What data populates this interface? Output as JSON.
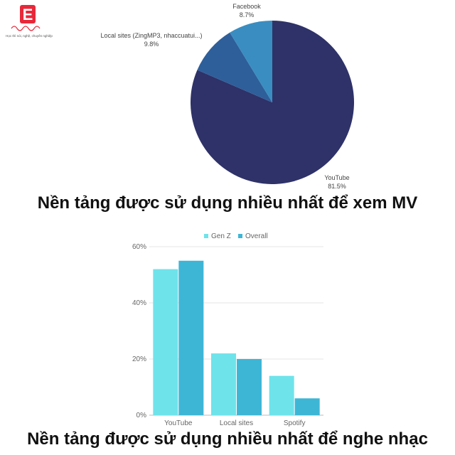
{
  "logo": {
    "letter": "E",
    "tagline": "Học thì nói, nghệ, chuyên nghiệp"
  },
  "colors": {
    "pie": [
      "#2e3268",
      "#2e5f9a",
      "#3a8dc0"
    ],
    "bar_genz": "#6ee3ea",
    "bar_overall": "#3db6d6",
    "logo_red": "#e8283a"
  },
  "chart_data": [
    {
      "type": "pie",
      "title": "Nền tảng được sử dụng nhiều nhất để xem MV",
      "slices": [
        {
          "label": "YouTube",
          "value": 81.5,
          "display": "81.5%"
        },
        {
          "label": "Local sites (ZingMP3, nhaccuatui...)",
          "value": 9.8,
          "display": "9.8%"
        },
        {
          "label": "Facebook",
          "value": 8.7,
          "display": "8.7%"
        }
      ]
    },
    {
      "type": "bar",
      "title": "Nền tảng được sử dụng nhiều nhất để nghe nhạc",
      "categories": [
        "YouTube",
        "Local sites",
        "Spotify"
      ],
      "series": [
        {
          "name": "Gen Z",
          "values": [
            52,
            22,
            14
          ]
        },
        {
          "name": "Overall",
          "values": [
            55,
            20,
            6
          ]
        }
      ],
      "yticks": [
        "0%",
        "20%",
        "40%",
        "60%"
      ],
      "ylim": [
        0,
        60
      ],
      "legend": "top",
      "grid": true
    }
  ]
}
